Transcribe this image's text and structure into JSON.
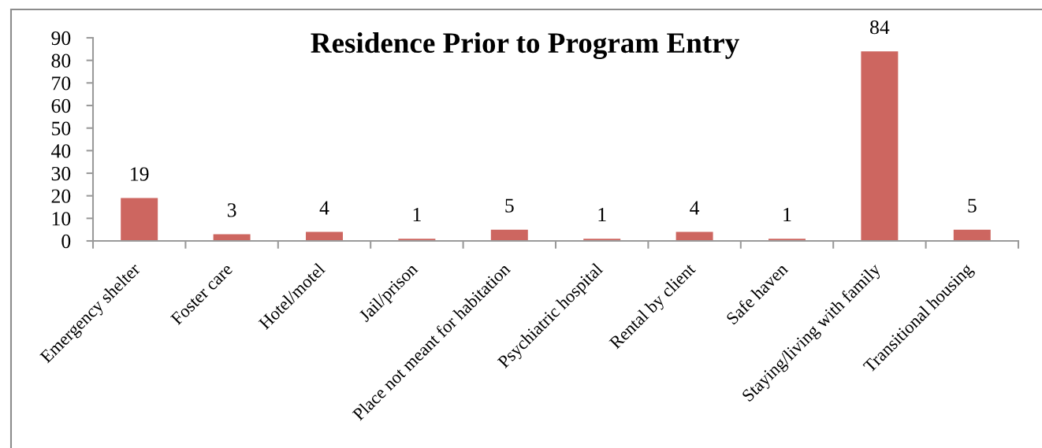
{
  "chart_data": {
    "type": "bar",
    "title": "Residence Prior to Program Entry",
    "categories": [
      "Emergency shelter",
      "Foster care",
      "Hotel/motel",
      "Jail/prison",
      "Place not meant for habitation",
      "Psychiatric hospital",
      "Rental by client",
      "Safe haven",
      "Staying/living with family",
      "Transitional housing"
    ],
    "values": [
      19,
      3,
      4,
      1,
      5,
      1,
      4,
      1,
      84,
      5
    ],
    "color": "#cd6660",
    "ylim": [
      0,
      90
    ],
    "yticks": [
      0,
      10,
      20,
      30,
      40,
      50,
      60,
      70,
      80,
      90
    ],
    "data_labels": true,
    "grid": false,
    "legend": false
  }
}
